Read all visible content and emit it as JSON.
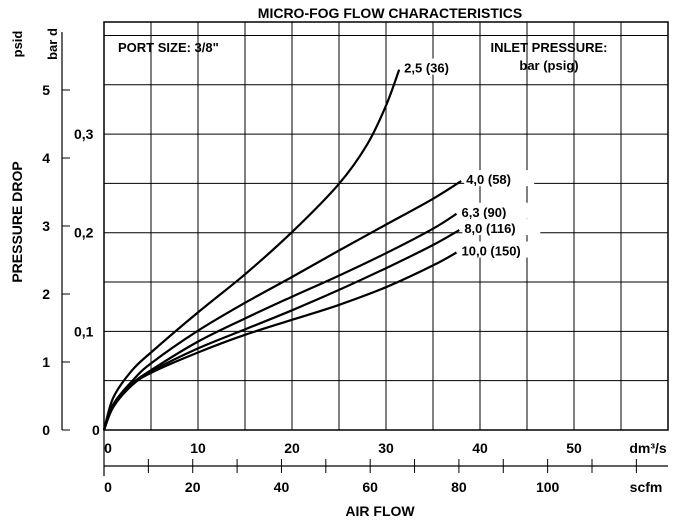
{
  "chart_data": {
    "type": "line",
    "title": "MICRO-FOG FLOW CHARACTERISTICS",
    "xlabel": "AIR FLOW",
    "ylabel": "PRESSURE DROP",
    "port_size": "PORT SIZE: 3/8\"",
    "legend_title_1": "INLET PRESSURE:",
    "legend_title_2": "bar (psig)",
    "x_unit_primary": "dm³/s",
    "x_unit_secondary": "scfm",
    "y_unit_primary": "psid",
    "y_unit_secondary": "bar d",
    "xlim": [
      0,
      60
    ],
    "ylim_psid": [
      0,
      6
    ],
    "grid": true,
    "x_ticks_primary": [
      "0",
      "10",
      "20",
      "30",
      "40",
      "50"
    ],
    "x_ticks_secondary": [
      "0",
      "20",
      "40",
      "60",
      "80",
      "100"
    ],
    "y_ticks_psid": [
      "0",
      "1",
      "2",
      "3",
      "4",
      "5"
    ],
    "y_ticks_bar": [
      "0",
      "0,1",
      "0,2",
      "0,3"
    ],
    "series": [
      {
        "name": "2,5 (36)",
        "x": [
          0,
          1,
          3,
          5,
          10,
          15,
          20,
          25,
          28,
          30,
          31.4
        ],
        "y": [
          0,
          0.48,
          0.88,
          1.14,
          1.73,
          2.29,
          2.91,
          3.62,
          4.2,
          4.77,
          5.3
        ]
      },
      {
        "name": "4,0 (58)",
        "x": [
          0,
          1,
          3,
          5,
          10,
          15,
          20,
          25,
          30,
          35,
          38
        ],
        "y": [
          0,
          0.38,
          0.72,
          0.98,
          1.46,
          1.87,
          2.25,
          2.64,
          3.02,
          3.4,
          3.66
        ]
      },
      {
        "name": "6,3 (90)",
        "x": [
          0,
          1,
          3,
          5,
          10,
          15,
          20,
          25,
          30,
          35,
          37.5
        ],
        "y": [
          0,
          0.36,
          0.68,
          0.88,
          1.3,
          1.64,
          1.96,
          2.27,
          2.6,
          2.96,
          3.18
        ]
      },
      {
        "name": "8,0 (116)",
        "x": [
          0,
          1,
          3,
          5,
          10,
          15,
          20,
          25,
          30,
          35,
          37.8
        ],
        "y": [
          0,
          0.35,
          0.67,
          0.86,
          1.2,
          1.48,
          1.76,
          2.06,
          2.38,
          2.72,
          2.94
        ]
      },
      {
        "name": "10,0 (150)",
        "x": [
          0,
          1,
          3,
          5,
          10,
          15,
          20,
          25,
          30,
          35,
          37.5
        ],
        "y": [
          0,
          0.34,
          0.66,
          0.84,
          1.14,
          1.4,
          1.62,
          1.84,
          2.1,
          2.42,
          2.61
        ]
      }
    ]
  }
}
